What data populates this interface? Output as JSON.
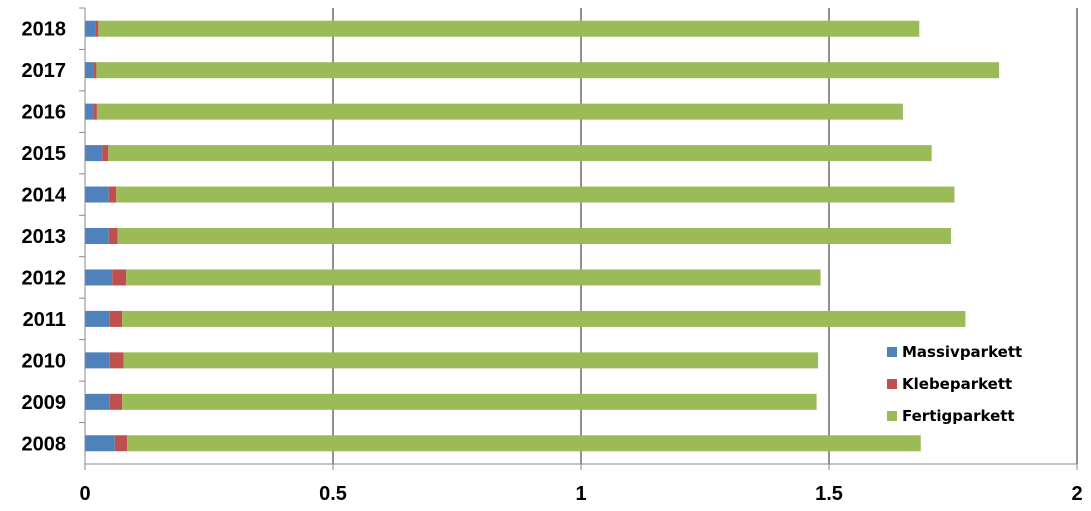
{
  "chart_data": {
    "type": "bar",
    "orientation": "horizontal",
    "stacked": true,
    "categories": [
      "2008",
      "2009",
      "2010",
      "2011",
      "2012",
      "2013",
      "2014",
      "2015",
      "2016",
      "2017",
      "2018"
    ],
    "series": [
      {
        "name": "Massivparkett",
        "color": "#4f81bd",
        "values": [
          0.06,
          0.05,
          0.05,
          0.05,
          0.055,
          0.048,
          0.048,
          0.035,
          0.018,
          0.018,
          0.022
        ]
      },
      {
        "name": "Klebeparkett",
        "color": "#c0504d",
        "values": [
          0.025,
          0.025,
          0.028,
          0.025,
          0.028,
          0.018,
          0.015,
          0.012,
          0.006,
          0.005,
          0.005
        ]
      },
      {
        "name": "Fertigparkett",
        "color": "#9bbb59",
        "values": [
          1.6,
          1.4,
          1.4,
          1.7,
          1.4,
          1.68,
          1.69,
          1.66,
          1.625,
          1.82,
          1.655
        ]
      }
    ],
    "xlim": [
      0,
      2
    ],
    "xticks": [
      "0",
      "0.5",
      "1",
      "1.5",
      "2"
    ],
    "title": "",
    "xlabel": "",
    "ylabel": "",
    "grid": "vertical major gridlines",
    "legend_position": "right, lower area"
  }
}
